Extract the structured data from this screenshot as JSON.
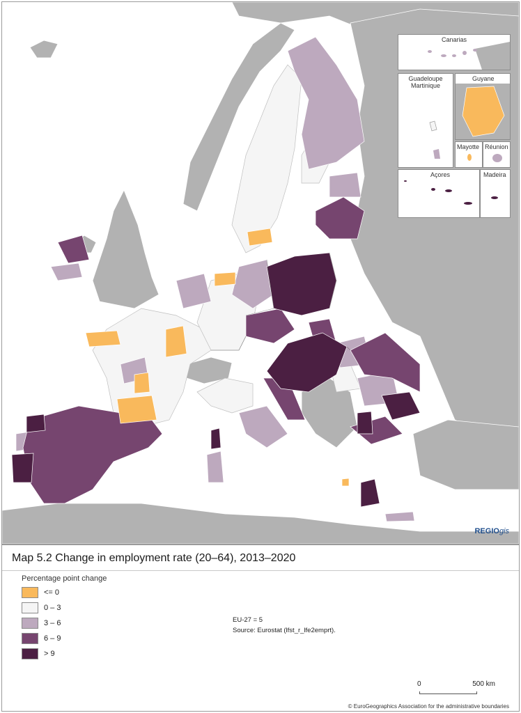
{
  "title": "Map 5.2 Change in employment rate (20–64), 2013–2020",
  "legend": {
    "title": "Percentage point change",
    "items": [
      {
        "label": "<= 0",
        "color": "#f9b95c"
      },
      {
        "label": "0 – 3",
        "color": "#f5f5f5"
      },
      {
        "label": "3 – 6",
        "color": "#bda9be"
      },
      {
        "label": "6 – 9",
        "color": "#76456f"
      },
      {
        "label": "> 9",
        "color": "#4b1f42"
      }
    ]
  },
  "notes": {
    "eu_average": "EU-27 = 5",
    "source": "Source: Eurostat (lfst_r_lfe2emprt)."
  },
  "insets": {
    "canarias": "Canarias",
    "guadeloupe_martinique": "Guadeloupe\nMartinique",
    "guyane": "Guyane",
    "mayotte": "Mayotte",
    "reunion": "Réunion",
    "acores": "Açores",
    "madeira": "Madeira"
  },
  "scale": {
    "start": "0",
    "end": "500 km"
  },
  "branding": {
    "name": "REGIO",
    "suffix": "gis"
  },
  "copyright": "© EuroGeographics Association for the administrative boundaries",
  "colors": {
    "non_eu_land": "#b2b2b2",
    "sea": "#ffffff"
  }
}
